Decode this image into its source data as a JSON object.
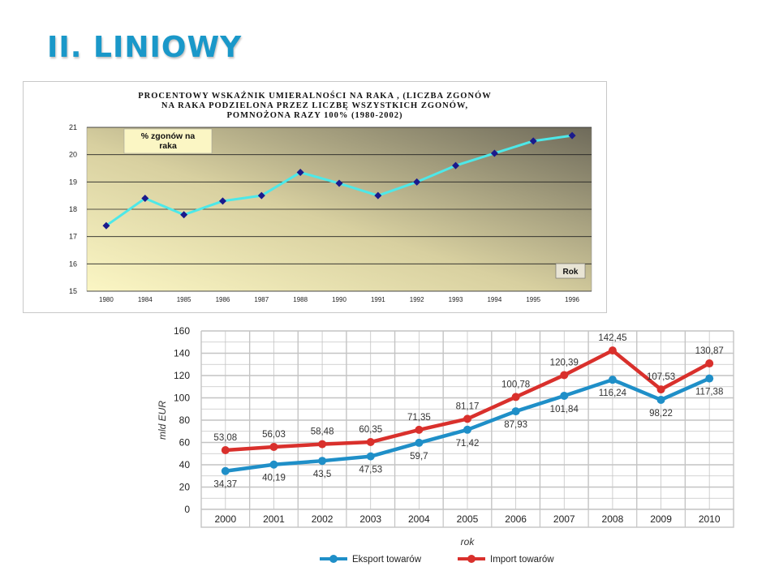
{
  "slide": {
    "title": "II. LINIOWY",
    "title_color": "#1a98c9"
  },
  "chart_data": [
    {
      "type": "line",
      "title": "PROCENTOWY WSKAŹNIK UMIERALNOŚCI NA RAKA , (LICZBA ZGONÓW NA RAKA PODZIELONA PRZEZ LICZBĘ WSZYSTKICH ZGONÓW, POMNOŻONA RAZY 100% (1980-2002)",
      "title_lines": [
        "PROCENTOWY WSKAŹNIK UMIERALNOŚCI NA RAKA , (LICZBA ZGONÓW",
        "NA RAKA PODZIELONA PRZEZ LICZBĘ WSZYSTKICH ZGONÓW,",
        "POMNOŻONA RAZY 100% (1980-2002)"
      ],
      "ylabel_lines": [
        "% zgonów na",
        "raka"
      ],
      "xlabel": "Rok",
      "categories": [
        "1980",
        "1984",
        "1985",
        "1986",
        "1987",
        "1988",
        "1990",
        "1991",
        "1992",
        "1993",
        "1994",
        "1995",
        "1996"
      ],
      "series": [
        {
          "values": [
            17.4,
            18.4,
            17.8,
            18.3,
            18.5,
            19.35,
            18.95,
            18.5,
            19.0,
            19.6,
            20.05,
            20.5,
            20.7
          ],
          "color": "#4de8e8",
          "marker_color": "#1a1a8c"
        }
      ],
      "ylim": [
        15,
        21
      ],
      "yticks": [
        15,
        16,
        17,
        18,
        19,
        20,
        21
      ],
      "grid": true,
      "legend": "none"
    },
    {
      "type": "line",
      "title": "",
      "xlabel": "rok",
      "ylabel": "mld EUR",
      "categories": [
        "2000",
        "2001",
        "2002",
        "2003",
        "2004",
        "2005",
        "2006",
        "2007",
        "2008",
        "2009",
        "2010"
      ],
      "series": [
        {
          "name": "Eksport towarów",
          "color": "#1f8fc8",
          "values": [
            34.37,
            40.19,
            43.5,
            47.53,
            59.7,
            71.42,
            87.93,
            101.84,
            116.24,
            98.22,
            117.38
          ],
          "labels": [
            "34,37",
            "40,19",
            "43,5",
            "47,53",
            "59,7",
            "71,42",
            "87,93",
            "101,84",
            "116,24",
            "98,22",
            "117,38"
          ]
        },
        {
          "name": "Import towarów",
          "color": "#d9302c",
          "values": [
            53.08,
            56.03,
            58.48,
            60.35,
            71.35,
            81.17,
            100.78,
            120.39,
            142.45,
            107.53,
            130.87
          ],
          "labels": [
            "53,08",
            "56,03",
            "58,48",
            "60,35",
            "71,35",
            "81,17",
            "100,78",
            "120,39",
            "142,45",
            "107,53",
            "130,87"
          ]
        }
      ],
      "ylim": [
        0,
        160
      ],
      "yticks": [
        0,
        20,
        40,
        60,
        80,
        100,
        120,
        140,
        160
      ],
      "grid": true,
      "legend": "bottom"
    }
  ]
}
